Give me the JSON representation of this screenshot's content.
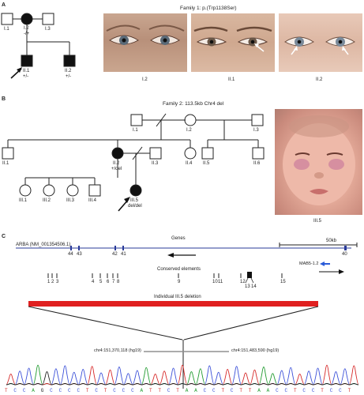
{
  "panel_a": {
    "letter": "A",
    "family_title": "Family 1: p.(Trp1138Ser)",
    "pedigree": {
      "I1": "I.1",
      "I2": "I.2",
      "I2_genotype": "-/+",
      "I3": "I.3",
      "II1": "II.1",
      "II1_genotype": "+/-",
      "II2": "II.2",
      "II2_genotype": "+/-"
    },
    "photo_labels": [
      "I.2",
      "II.1",
      "II.2"
    ]
  },
  "panel_b": {
    "letter": "B",
    "family_title": "Family 2: 113.5kb Chr4 del",
    "pedigree": {
      "I1": "I.1",
      "I2": "I.2",
      "I3": "I.3",
      "II1": "II.1",
      "II2": "II.2",
      "II2_genotype": "+/del",
      "II3": "II.3",
      "II4": "II.4",
      "II5": "II.5",
      "II6": "II.6",
      "III1": "III.1",
      "III2": "III.2",
      "III3": "III.3",
      "III4": "III.4",
      "III5": "III.5",
      "III5_genotype": "del/del"
    },
    "photo_label": "III.5"
  },
  "panel_c": {
    "letter": "C",
    "genes_title": "Genes",
    "gene_name": "ARBA (NM_001354506.1)",
    "scale_label": "50kb",
    "exon_labels": [
      "44",
      "43",
      "42",
      "41",
      "40"
    ],
    "other_gene": "MAB5-1.2",
    "conserved_title": "Conserved elements",
    "conserved_labels": [
      "1",
      "2",
      "3",
      "4",
      "5",
      "6",
      "7",
      "8",
      "9",
      "10",
      "11",
      "12",
      "13",
      "14",
      "15"
    ],
    "deletion_title": "Individual III.5 deletion",
    "breakpoint_left": "chr4:151,370,118 (hg19)",
    "breakpoint_right": "chr4:151,483,590 (hg19)",
    "sequence": "TCCAGCCCCTCTCCCATTCTAACCTCTTAACCTCCTCCT"
  },
  "colors": {
    "deletion_bar": "#e02020",
    "gene_line": "#2a3b9a",
    "trace_blue": "#3a4fd8",
    "trace_green": "#1f9a2e",
    "trace_red": "#d62828",
    "trace_black": "#222222"
  }
}
